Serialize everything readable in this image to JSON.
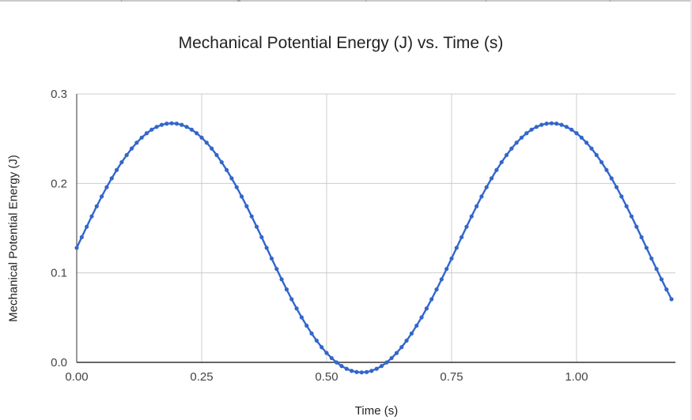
{
  "chart_data": {
    "type": "line",
    "title": "Mechanical Potential Energy (J) vs. Time (s)",
    "xlabel": "Time (s)",
    "ylabel": "Mechanical Potential Energy (J)",
    "xlim": [
      0,
      1.2
    ],
    "ylim": [
      0,
      0.3
    ],
    "xticks": [
      "0.00",
      "0.25",
      "0.50",
      "0.75",
      "1.00"
    ],
    "xtick_values": [
      0,
      0.25,
      0.5,
      0.75,
      1.0
    ],
    "yticks": [
      "0.0",
      "0.1",
      "0.2",
      "0.3"
    ],
    "ytick_values": [
      0,
      0.1,
      0.2,
      0.3
    ],
    "grid": true,
    "legend": "none",
    "series": [
      {
        "color": "#3366cc",
        "x": [
          0.0,
          0.01,
          0.02,
          0.03,
          0.04,
          0.05,
          0.06,
          0.07,
          0.08,
          0.09,
          0.1,
          0.11,
          0.12,
          0.13,
          0.14,
          0.15,
          0.16,
          0.17,
          0.18,
          0.19,
          0.2,
          0.21,
          0.22,
          0.23,
          0.24,
          0.25,
          0.26,
          0.27,
          0.28,
          0.29,
          0.3,
          0.31,
          0.32,
          0.33,
          0.34,
          0.35,
          0.36,
          0.37,
          0.38,
          0.39,
          0.4,
          0.41,
          0.42,
          0.43,
          0.44,
          0.45,
          0.46,
          0.47,
          0.48,
          0.49,
          0.5,
          0.51,
          0.52,
          0.53,
          0.54,
          0.55,
          0.56,
          0.57,
          0.58,
          0.59,
          0.6,
          0.61,
          0.62,
          0.63,
          0.64,
          0.65,
          0.66,
          0.67,
          0.68,
          0.69,
          0.7,
          0.71,
          0.72,
          0.73,
          0.74,
          0.75,
          0.76,
          0.77,
          0.78,
          0.79,
          0.8,
          0.81,
          0.82,
          0.83,
          0.84,
          0.85,
          0.86,
          0.87,
          0.88,
          0.89,
          0.9,
          0.91,
          0.92,
          0.93,
          0.94,
          0.95,
          0.96,
          0.97,
          0.98,
          0.99,
          1.0,
          1.01,
          1.02,
          1.03,
          1.04,
          1.05,
          1.06,
          1.07,
          1.08,
          1.09,
          1.1,
          1.11,
          1.12,
          1.13,
          1.14,
          1.15,
          1.16,
          1.17,
          1.18,
          1.19
        ],
        "y": [
          0.128,
          0.1399,
          0.1516,
          0.1632,
          0.1745,
          0.1854,
          0.1958,
          0.2057,
          0.215,
          0.2237,
          0.2317,
          0.239,
          0.2455,
          0.2512,
          0.2561,
          0.2601,
          0.2632,
          0.2655,
          0.2668,
          0.2672,
          0.2668,
          0.2655,
          0.2632,
          0.2601,
          0.2561,
          0.2512,
          0.2455,
          0.239,
          0.2317,
          0.2237,
          0.215,
          0.2057,
          0.1958,
          0.1854,
          0.1745,
          0.1632,
          0.1516,
          0.1399,
          0.128,
          0.1161,
          0.1044,
          0.0928,
          0.0815,
          0.0706,
          0.0602,
          0.0503,
          0.041,
          0.0323,
          0.0243,
          0.017,
          0.0105,
          0.0048,
          -0.0001,
          -0.0041,
          -0.0072,
          -0.0095,
          -0.0108,
          -0.0112,
          -0.0108,
          -0.0095,
          -0.0072,
          -0.0041,
          -0.0001,
          0.0048,
          0.0105,
          0.017,
          0.0243,
          0.0323,
          0.041,
          0.0503,
          0.0602,
          0.0706,
          0.0815,
          0.0928,
          0.1044,
          0.1161,
          0.128,
          0.1399,
          0.1516,
          0.1632,
          0.1745,
          0.1854,
          0.1958,
          0.2057,
          0.215,
          0.2237,
          0.2317,
          0.239,
          0.2455,
          0.2512,
          0.2561,
          0.2601,
          0.2632,
          0.2655,
          0.2668,
          0.2672,
          0.2668,
          0.2655,
          0.2632,
          0.2601,
          0.2561,
          0.2512,
          0.2455,
          0.239,
          0.2317,
          0.2237,
          0.215,
          0.2057,
          0.1958,
          0.1854,
          0.1745,
          0.1632,
          0.1516,
          0.1399,
          0.128,
          0.1161,
          0.1044,
          0.0928,
          0.0815,
          0.0706
        ]
      }
    ]
  }
}
